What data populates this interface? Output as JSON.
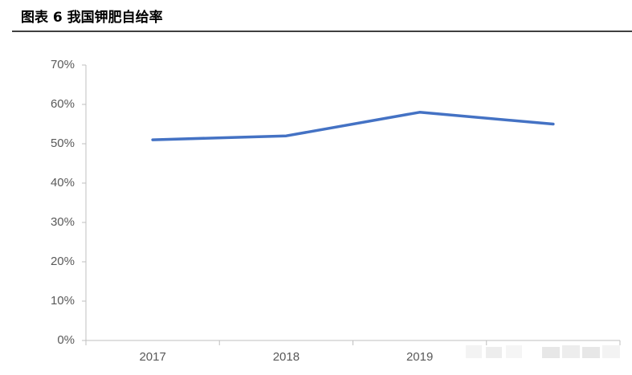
{
  "chart_data": {
    "type": "line",
    "title": "图表 6 我国钾肥自给率",
    "categories": [
      "2017",
      "2018",
      "2019",
      null
    ],
    "series": [
      {
        "name": null,
        "color": "#4472c4",
        "values": [
          51,
          52,
          58,
          55
        ]
      }
    ],
    "ylim": [
      0,
      70
    ],
    "yticks": [
      {
        "value": 0,
        "label": "0%"
      },
      {
        "value": 10,
        "label": "10%"
      },
      {
        "value": 20,
        "label": "20%"
      },
      {
        "value": 30,
        "label": "30%"
      },
      {
        "value": 40,
        "label": "40%"
      },
      {
        "value": 50,
        "label": "50%"
      },
      {
        "value": 60,
        "label": "60%"
      },
      {
        "value": 70,
        "label": "70%"
      }
    ],
    "grid": false
  }
}
